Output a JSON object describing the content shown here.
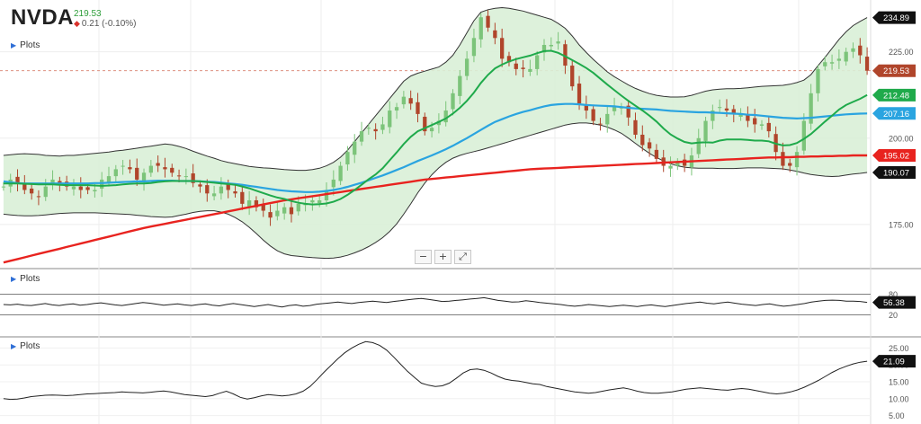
{
  "header": {
    "ticker": "NVDA",
    "price": "219.53",
    "change": "0.21 (-0.10%)",
    "change_direction_icon": "down-triangle-icon"
  },
  "panels": {
    "main": {
      "plots_label": "Plots"
    },
    "oscillator": {
      "plots_label": "Plots"
    },
    "volatility": {
      "plots_label": "Plots"
    }
  },
  "zoom_controls": {
    "zoom_out": "−",
    "zoom_in": "+",
    "reset": "⤢"
  },
  "colors": {
    "up": "#7cc47a",
    "down": "#b0452b",
    "sma20": "#1faa4b",
    "sma50": "#2aa4e0",
    "sma200": "#e8231f",
    "band_fill": "#d9f0d7",
    "band_line": "#333333",
    "price_tag": "#b0452b"
  },
  "chart_data": [
    {
      "type": "candlestick",
      "panel": "main",
      "y_ticks": [
        "225.00",
        "200.00",
        "175.00"
      ],
      "y_tick_values": [
        225,
        200,
        175
      ],
      "ylim": [
        162.5,
        240
      ],
      "last_price": 219.53,
      "price_tags": [
        {
          "label": "234.89",
          "value": 234.89,
          "series": "bollinger-upper"
        },
        {
          "label": "219.53",
          "value": 219.53,
          "series": "last-price"
        },
        {
          "label": "212.48",
          "value": 212.48,
          "series": "sma20"
        },
        {
          "label": "207.16",
          "value": 207.16,
          "series": "sma50"
        },
        {
          "label": "195.02",
          "value": 195.02,
          "series": "sma200"
        },
        {
          "label": "190.07",
          "value": 190.07,
          "series": "bollinger-lower"
        }
      ],
      "close": [
        186,
        188,
        187,
        185,
        184,
        183,
        186,
        188,
        187,
        186,
        186,
        185,
        185,
        185,
        188,
        189,
        191,
        192,
        191,
        188,
        190,
        192,
        192,
        191,
        190,
        189,
        189,
        187,
        186,
        184,
        184,
        186,
        185,
        184,
        181,
        182,
        180,
        179,
        177,
        179,
        180,
        178,
        181,
        181,
        182,
        182,
        185,
        188,
        192,
        196,
        199,
        202,
        203,
        202,
        204,
        208,
        209,
        212,
        210,
        207,
        202,
        203,
        205,
        208,
        213,
        218,
        223,
        229,
        235,
        232,
        229,
        223,
        222,
        220,
        220,
        220,
        224,
        227,
        227,
        228,
        221,
        215,
        210,
        208,
        205,
        204,
        207,
        209,
        209,
        206,
        201,
        198,
        197,
        194,
        192,
        192,
        193,
        192,
        195,
        200,
        205,
        208,
        209,
        208,
        207,
        207,
        205,
        204,
        204,
        202,
        196,
        192,
        192,
        196,
        205,
        213,
        220,
        222,
        222,
        223,
        225,
        226,
        224,
        219.53
      ],
      "sma20": [
        186.9,
        186.9,
        186.9,
        186.8,
        186.7,
        186.6,
        186.6,
        186.6,
        186.5,
        186.4,
        186.4,
        186.4,
        186.4,
        186.3,
        186.2,
        186.3,
        186.4,
        186.6,
        186.8,
        186.9,
        186.9,
        187.0,
        187.3,
        187.5,
        187.6,
        187.6,
        187.6,
        187.6,
        187.5,
        187.3,
        187.1,
        186.9,
        186.7,
        186.5,
        186.0,
        185.5,
        184.8,
        184.1,
        183.4,
        182.8,
        182.4,
        181.8,
        181.3,
        181.0,
        180.8,
        180.9,
        181.1,
        181.6,
        182.4,
        183.6,
        185.0,
        186.5,
        188.1,
        189.5,
        191.3,
        193.6,
        195.9,
        198.3,
        200.4,
        202.0,
        202.9,
        203.8,
        204.7,
        205.7,
        207.1,
        208.8,
        210.8,
        213.2,
        216.0,
        218.3,
        220.2,
        221.3,
        222.2,
        222.9,
        223.4,
        223.9,
        224.6,
        225.2,
        225.3,
        224.7,
        223.7,
        222.6,
        221.5,
        220.3,
        218.9,
        217.2,
        215.5,
        213.9,
        212.3,
        210.8,
        209.4,
        208.0,
        206.5,
        204.8,
        202.8,
        201.1,
        199.9,
        198.9,
        198.5,
        198.7,
        198.8,
        198.7,
        199.3,
        199.6,
        199.6,
        199.6,
        199.5,
        199.3,
        199.3,
        199.1,
        198.4,
        197.9,
        198.0,
        198.6,
        199.8,
        201.2,
        203.0,
        204.8,
        206.5,
        208.3,
        209.6,
        210.5,
        211.4,
        212.48
      ],
      "sma50": [
        187.5,
        187.2,
        187.0,
        186.9,
        186.9,
        186.9,
        186.9,
        186.9,
        186.9,
        186.9,
        186.9,
        186.9,
        186.9,
        187.0,
        187.0,
        187.1,
        187.2,
        187.3,
        187.4,
        187.5,
        187.5,
        187.6,
        187.7,
        187.7,
        187.7,
        187.6,
        187.6,
        187.6,
        187.5,
        187.4,
        187.3,
        187.1,
        186.9,
        186.7,
        186.5,
        186.2,
        185.9,
        185.6,
        185.3,
        185.0,
        184.8,
        184.6,
        184.5,
        184.4,
        184.4,
        184.5,
        184.7,
        185.0,
        185.4,
        185.9,
        186.5,
        187.1,
        187.8,
        188.5,
        189.2,
        190.0,
        190.8,
        191.6,
        192.5,
        193.4,
        194.2,
        195.0,
        195.9,
        196.8,
        197.8,
        198.9,
        200.0,
        201.2,
        202.4,
        203.6,
        204.7,
        205.5,
        206.3,
        207.0,
        207.6,
        208.1,
        208.7,
        209.2,
        209.6,
        209.8,
        209.9,
        209.9,
        209.8,
        209.6,
        209.5,
        209.4,
        209.3,
        209.2,
        209.0,
        208.8,
        208.6,
        208.5,
        208.4,
        208.3,
        208.1,
        207.9,
        207.8,
        207.7,
        207.6,
        207.5,
        207.5,
        207.4,
        207.3,
        207.2,
        207.1,
        207.0,
        206.8,
        206.7,
        206.5,
        206.3,
        206.1,
        205.9,
        205.8,
        205.7,
        205.8,
        205.9,
        206.1,
        206.3,
        206.5,
        206.7,
        206.9,
        207.0,
        207.1,
        207.16
      ],
      "sma200": [
        164.0,
        164.5,
        165.0,
        165.5,
        166.0,
        166.5,
        167.0,
        167.5,
        168.0,
        168.5,
        169.0,
        169.5,
        170.0,
        170.5,
        171.0,
        171.5,
        172.0,
        172.5,
        173.0,
        173.5,
        174.0,
        174.4,
        174.8,
        175.2,
        175.6,
        176.0,
        176.4,
        176.8,
        177.2,
        177.6,
        178.0,
        178.4,
        178.8,
        179.2,
        179.6,
        180.0,
        180.4,
        180.8,
        181.2,
        181.6,
        182.0,
        182.3,
        182.6,
        182.9,
        183.2,
        183.5,
        183.8,
        184.1,
        184.4,
        184.7,
        185.0,
        185.3,
        185.6,
        185.9,
        186.2,
        186.5,
        186.8,
        187.1,
        187.4,
        187.7,
        188.0,
        188.2,
        188.4,
        188.6,
        188.8,
        189.0,
        189.2,
        189.4,
        189.6,
        189.8,
        190.0,
        190.2,
        190.4,
        190.6,
        190.8,
        191.0,
        191.1,
        191.2,
        191.3,
        191.4,
        191.5,
        191.6,
        191.7,
        191.8,
        191.9,
        192.0,
        192.1,
        192.2,
        192.3,
        192.4,
        192.5,
        192.6,
        192.7,
        192.8,
        192.9,
        193.0,
        193.1,
        193.2,
        193.3,
        193.4,
        193.5,
        193.6,
        193.7,
        193.8,
        193.9,
        194.0,
        194.1,
        194.2,
        194.3,
        194.4,
        194.4,
        194.5,
        194.5,
        194.6,
        194.6,
        194.7,
        194.7,
        194.8,
        194.8,
        194.9,
        194.9,
        195.0,
        195.0,
        195.02
      ],
      "bb_upper": [
        195.0,
        195.2,
        195.4,
        195.5,
        195.4,
        195.3,
        195.0,
        194.9,
        194.8,
        195.0,
        195.0,
        195.2,
        195.4,
        195.6,
        195.8,
        196.0,
        196.3,
        196.5,
        196.8,
        197.1,
        197.4,
        197.7,
        198.0,
        198.3,
        198.1,
        197.6,
        197.0,
        196.2,
        195.5,
        194.8,
        194.2,
        193.5,
        193.0,
        192.6,
        192.2,
        191.8,
        191.6,
        191.4,
        191.3,
        191.1,
        190.9,
        190.8,
        190.7,
        190.7,
        190.9,
        191.3,
        192.0,
        193.0,
        194.5,
        196.5,
        199.0,
        201.5,
        204.0,
        206.5,
        209.0,
        211.5,
        214.0,
        216.5,
        218.0,
        218.8,
        219.4,
        220.0,
        220.6,
        222.0,
        224.0,
        227.0,
        230.5,
        234.0,
        236.5,
        237.2,
        237.6,
        237.8,
        237.6,
        237.2,
        236.8,
        236.2,
        235.6,
        235.0,
        234.4,
        233.2,
        231.8,
        229.6,
        227.0,
        224.8,
        222.8,
        221.0,
        219.2,
        217.8,
        216.6,
        215.4,
        214.4,
        213.6,
        212.9,
        212.4,
        212.1,
        211.9,
        211.9,
        212.0,
        212.4,
        213.0,
        213.6,
        214.0,
        214.2,
        214.3,
        214.3,
        214.4,
        214.6,
        214.8,
        215.0,
        215.1,
        215.2,
        215.3,
        215.6,
        216.1,
        216.8,
        218.4,
        221.0,
        223.4,
        226.0,
        228.6,
        230.8,
        232.6,
        233.8,
        234.89
      ],
      "bb_lower": [
        178.0,
        177.8,
        177.6,
        177.5,
        177.5,
        177.6,
        177.8,
        178.0,
        178.2,
        178.3,
        178.4,
        178.4,
        178.4,
        178.4,
        178.3,
        178.2,
        178.1,
        178.0,
        177.9,
        177.7,
        177.5,
        177.3,
        177.2,
        177.1,
        177.2,
        177.6,
        178.0,
        178.5,
        178.8,
        179.0,
        179.0,
        178.6,
        178.0,
        177.0,
        175.8,
        174.2,
        172.4,
        170.5,
        168.8,
        167.4,
        166.5,
        166.0,
        165.8,
        165.6,
        165.4,
        165.3,
        165.2,
        165.3,
        165.6,
        166.1,
        166.8,
        167.6,
        168.6,
        169.8,
        171.2,
        173.0,
        175.2,
        178.0,
        181.0,
        184.2,
        187.0,
        189.4,
        191.4,
        193.0,
        194.2,
        195.0,
        195.6,
        196.1,
        196.6,
        197.2,
        197.8,
        198.4,
        199.0,
        199.6,
        200.2,
        200.8,
        201.4,
        202.0,
        202.6,
        203.2,
        203.8,
        204.2,
        204.4,
        204.4,
        204.2,
        203.8,
        203.2,
        202.4,
        201.4,
        200.0,
        198.5,
        197.0,
        195.6,
        194.4,
        193.4,
        192.6,
        192.0,
        191.6,
        191.4,
        191.3,
        191.3,
        191.3,
        191.2,
        191.2,
        191.2,
        191.3,
        191.4,
        191.4,
        191.4,
        191.3,
        191.2,
        191.1,
        190.8,
        190.4,
        189.9,
        189.5,
        189.2,
        189.0,
        188.9,
        189.0,
        189.3,
        189.6,
        189.8,
        190.07
      ]
    },
    {
      "type": "line",
      "panel": "oscillator",
      "y_ticks": [
        "80",
        "20"
      ],
      "y_tick_values": [
        80,
        20
      ],
      "ylim": [
        0,
        100
      ],
      "last_value": "56.38",
      "values": [
        50,
        49,
        51,
        48,
        47,
        50,
        53,
        49,
        47,
        50,
        52,
        48,
        50,
        53,
        55,
        52,
        49,
        47,
        50,
        53,
        56,
        54,
        51,
        48,
        50,
        52,
        49,
        47,
        50,
        52,
        48,
        46,
        50,
        53,
        50,
        47,
        44,
        47,
        50,
        46,
        43,
        47,
        49,
        45,
        47,
        51,
        53,
        55,
        57,
        55,
        53,
        56,
        58,
        60,
        58,
        56,
        59,
        61,
        64,
        66,
        68,
        65,
        62,
        59,
        60,
        62,
        64,
        66,
        68,
        70,
        66,
        62,
        60,
        57,
        58,
        61,
        59,
        56,
        54,
        52,
        50,
        47,
        45,
        47,
        50,
        48,
        46,
        44,
        46,
        48,
        46,
        44,
        47,
        49,
        46,
        44,
        47,
        50,
        53,
        55,
        57,
        54,
        52,
        55,
        57,
        54,
        51,
        49,
        47,
        50,
        52,
        48,
        45,
        47,
        50,
        53,
        57,
        60,
        62,
        63,
        62,
        60,
        60,
        59,
        56.38
      ]
    },
    {
      "type": "line",
      "panel": "volatility",
      "y_ticks": [
        "25.00",
        "20.00",
        "15.00",
        "10.00",
        "5.00"
      ],
      "y_tick_values": [
        25,
        20,
        15,
        10,
        5
      ],
      "ylim": [
        2.5,
        27.5
      ],
      "last_value": "21.09",
      "values": [
        10.0,
        9.8,
        9.9,
        10.2,
        10.6,
        10.8,
        11.0,
        11.1,
        11.0,
        10.9,
        11.0,
        11.2,
        11.4,
        11.5,
        11.6,
        11.7,
        11.8,
        12.0,
        11.9,
        11.8,
        11.7,
        11.9,
        12.1,
        12.3,
        12.0,
        11.6,
        11.2,
        11.0,
        10.8,
        10.6,
        10.9,
        11.6,
        12.2,
        11.4,
        10.4,
        9.9,
        10.3,
        10.8,
        11.2,
        11.0,
        10.8,
        11.0,
        11.4,
        12.2,
        13.6,
        15.6,
        17.8,
        19.8,
        21.8,
        23.6,
        25.0,
        26.1,
        26.9,
        26.6,
        25.8,
        24.4,
        22.4,
        20.2,
        18.1,
        16.3,
        14.6,
        14.0,
        13.6,
        13.8,
        14.6,
        16.0,
        17.6,
        18.6,
        18.8,
        18.4,
        17.6,
        16.6,
        15.8,
        15.4,
        15.2,
        14.8,
        14.4,
        14.2,
        13.6,
        13.2,
        12.8,
        12.4,
        12.0,
        11.8,
        11.6,
        11.8,
        12.2,
        12.6,
        12.9,
        13.2,
        12.8,
        12.2,
        11.8,
        11.6,
        11.6,
        11.8,
        12.0,
        12.4,
        12.8,
        13.0,
        13.2,
        13.0,
        12.8,
        12.6,
        12.5,
        12.8,
        13.0,
        12.8,
        12.4,
        12.0,
        11.6,
        11.4,
        11.6,
        12.0,
        12.6,
        13.4,
        14.4,
        15.4,
        16.6,
        17.8,
        18.8,
        19.6,
        20.3,
        20.8,
        21.09
      ]
    }
  ]
}
